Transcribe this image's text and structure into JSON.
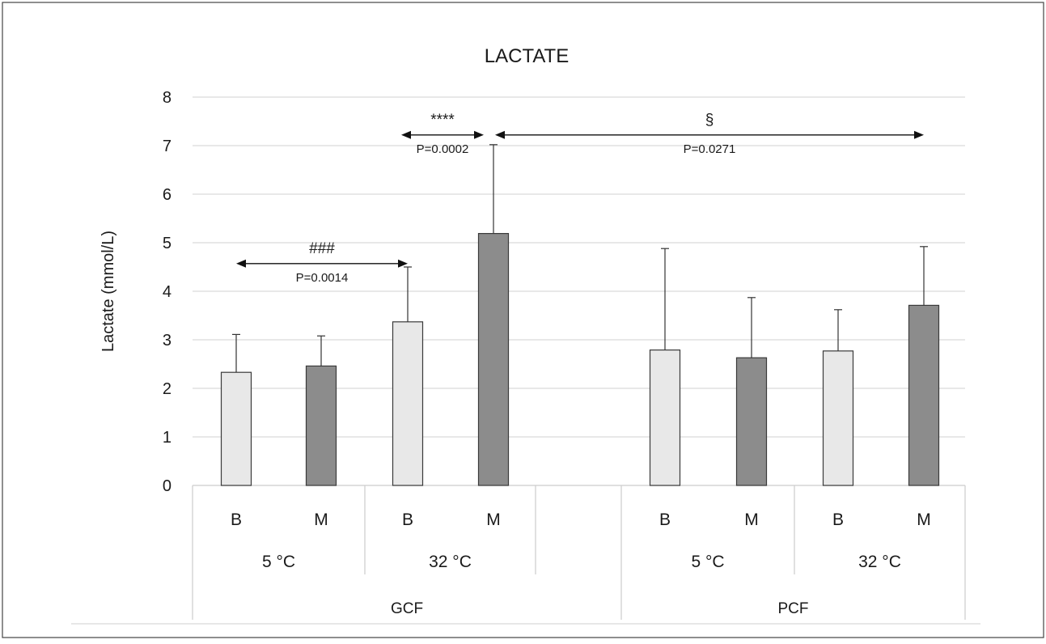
{
  "chart_data": {
    "type": "bar",
    "title": "LACTATE",
    "xlabel": "",
    "ylabel": "Lactate (mmol/L)",
    "ylim": [
      0,
      8
    ],
    "yticks": [
      0,
      1,
      2,
      3,
      4,
      5,
      6,
      7,
      8
    ],
    "grid": true,
    "legend": "none",
    "colors": {
      "B": "#e8e8e8",
      "M": "#8c8c8c",
      "border": "#3a3a3a",
      "grid": "#d9d9d9"
    },
    "categories": [
      "B",
      "M",
      "B",
      "M",
      "B",
      "M",
      "B",
      "M"
    ],
    "temperature_groups": [
      "5 °C",
      "32 °C",
      "5 °C",
      "32 °C"
    ],
    "fluid_groups": [
      "GCF",
      "PCF"
    ],
    "bars": [
      {
        "fluid": "GCF",
        "temp": "5 °C",
        "label": "B",
        "value": 2.33,
        "error": 0.78
      },
      {
        "fluid": "GCF",
        "temp": "5 °C",
        "label": "M",
        "value": 2.46,
        "error": 0.62
      },
      {
        "fluid": "GCF",
        "temp": "32 °C",
        "label": "B",
        "value": 3.37,
        "error": 1.13
      },
      {
        "fluid": "GCF",
        "temp": "32 °C",
        "label": "M",
        "value": 5.19,
        "error": 1.83
      },
      {
        "fluid": "PCF",
        "temp": "5 °C",
        "label": "B",
        "value": 2.79,
        "error": 2.09
      },
      {
        "fluid": "PCF",
        "temp": "5 °C",
        "label": "M",
        "value": 2.63,
        "error": 1.24
      },
      {
        "fluid": "PCF",
        "temp": "32 °C",
        "label": "B",
        "value": 2.77,
        "error": 0.85
      },
      {
        "fluid": "PCF",
        "temp": "32 °C",
        "label": "M",
        "value": 3.71,
        "error": 1.21
      }
    ],
    "annotations": [
      {
        "symbol": "###",
        "p": "P=0.0014",
        "from_bar": 0,
        "to_bar": 2,
        "y": 4.57
      },
      {
        "symbol": "****",
        "p": "P=0.0002",
        "from_bar": 2,
        "to_bar": 3,
        "y": 7.22
      },
      {
        "symbol": "§",
        "p": "P=0.0271",
        "from_bar": 3,
        "to_bar": 7,
        "y": 7.22
      }
    ]
  }
}
